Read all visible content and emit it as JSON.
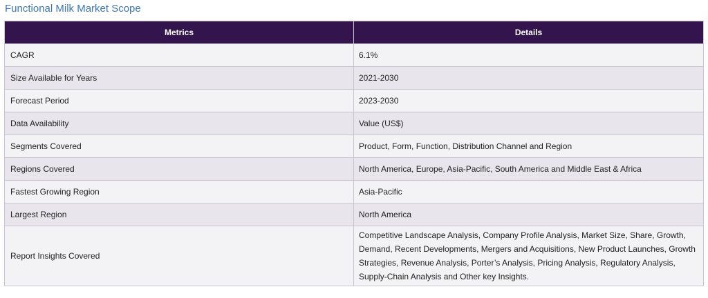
{
  "title": "Functional Milk Market Scope",
  "table": {
    "headers": [
      "Metrics",
      "Details"
    ],
    "rows": [
      {
        "metric": "CAGR",
        "detail": "6.1%"
      },
      {
        "metric": "Size Available for Years",
        "detail": "2021-2030"
      },
      {
        "metric": "Forecast Period",
        "detail": "2023-2030"
      },
      {
        "metric": "Data Availability",
        "detail": "Value (US$)"
      },
      {
        "metric": "Segments Covered",
        "detail": "Product, Form, Function, Distribution Channel and Region"
      },
      {
        "metric": "Regions Covered",
        "detail": "North America, Europe, Asia-Pacific, South America and Middle East & Africa"
      },
      {
        "metric": "Fastest Growing Region",
        "detail": "Asia-Pacific"
      },
      {
        "metric": "Largest Region",
        "detail": "North America"
      },
      {
        "metric": "Report Insights Covered",
        "detail": "Competitive Landscape Analysis, Company Profile Analysis, Market Size, Share, Growth, Demand, Recent Developments, Mergers and Acquisitions, New Product Launches, Growth Strategies, Revenue Analysis, Porter’s Analysis, Pricing Analysis, Regulatory Analysis, Supply-Chain Analysis and Other key Insights."
      }
    ]
  },
  "colors": {
    "title": "#3a78b5",
    "header_bg": "#33144d",
    "row_light": "#f3f2f5",
    "row_dark": "#e8e6ec",
    "border": "#c9c5d0"
  }
}
